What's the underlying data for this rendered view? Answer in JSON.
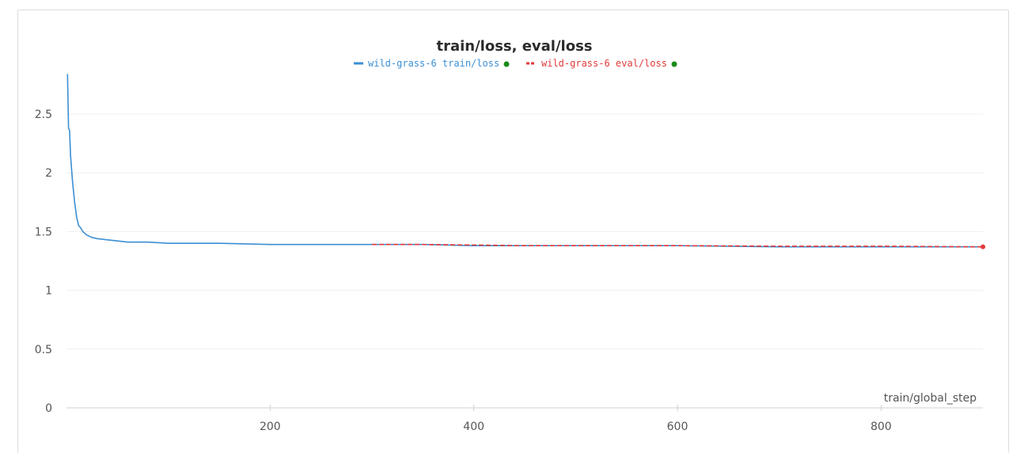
{
  "chart_data": {
    "type": "line",
    "title": "train/loss, eval/loss",
    "xlabel": "train/global_step",
    "ylabel": "",
    "xlim": [
      0,
      900
    ],
    "ylim": [
      0,
      2.85
    ],
    "x_ticks": [
      200,
      400,
      600,
      800
    ],
    "y_ticks": [
      0,
      0.5,
      1,
      1.5,
      2,
      2.5
    ],
    "x_tick_labels": [
      "200",
      "400",
      "600",
      "800"
    ],
    "y_tick_labels": [
      "0",
      "0.5",
      "1",
      "1.5",
      "2",
      "2.5"
    ],
    "grid": true,
    "legend_position": "top-center",
    "series": [
      {
        "name": "wild-grass-6 train/loss",
        "color": "#3b8fd4",
        "dash": "solid",
        "status_color": "#1a8a1a",
        "x": [
          1,
          2,
          3,
          4,
          6,
          8,
          10,
          12,
          14,
          16,
          20,
          25,
          30,
          40,
          50,
          60,
          70,
          80,
          100,
          150,
          200,
          250,
          300,
          350,
          400,
          450,
          500,
          600,
          700,
          800,
          900
        ],
        "y": [
          2.84,
          2.38,
          2.36,
          2.15,
          1.92,
          1.75,
          1.62,
          1.55,
          1.53,
          1.5,
          1.47,
          1.45,
          1.44,
          1.43,
          1.42,
          1.41,
          1.41,
          1.41,
          1.4,
          1.4,
          1.39,
          1.39,
          1.39,
          1.39,
          1.38,
          1.38,
          1.38,
          1.38,
          1.37,
          1.37,
          1.37
        ]
      },
      {
        "name": "wild-grass-6 eval/loss",
        "color": "#e03a3a",
        "dash": "dashed",
        "status_color": "#1a8a1a",
        "x": [
          300,
          350,
          400,
          450,
          500,
          600,
          700,
          800,
          900
        ],
        "y": [
          1.39,
          1.39,
          1.385,
          1.38,
          1.38,
          1.38,
          1.375,
          1.375,
          1.37
        ]
      }
    ]
  }
}
